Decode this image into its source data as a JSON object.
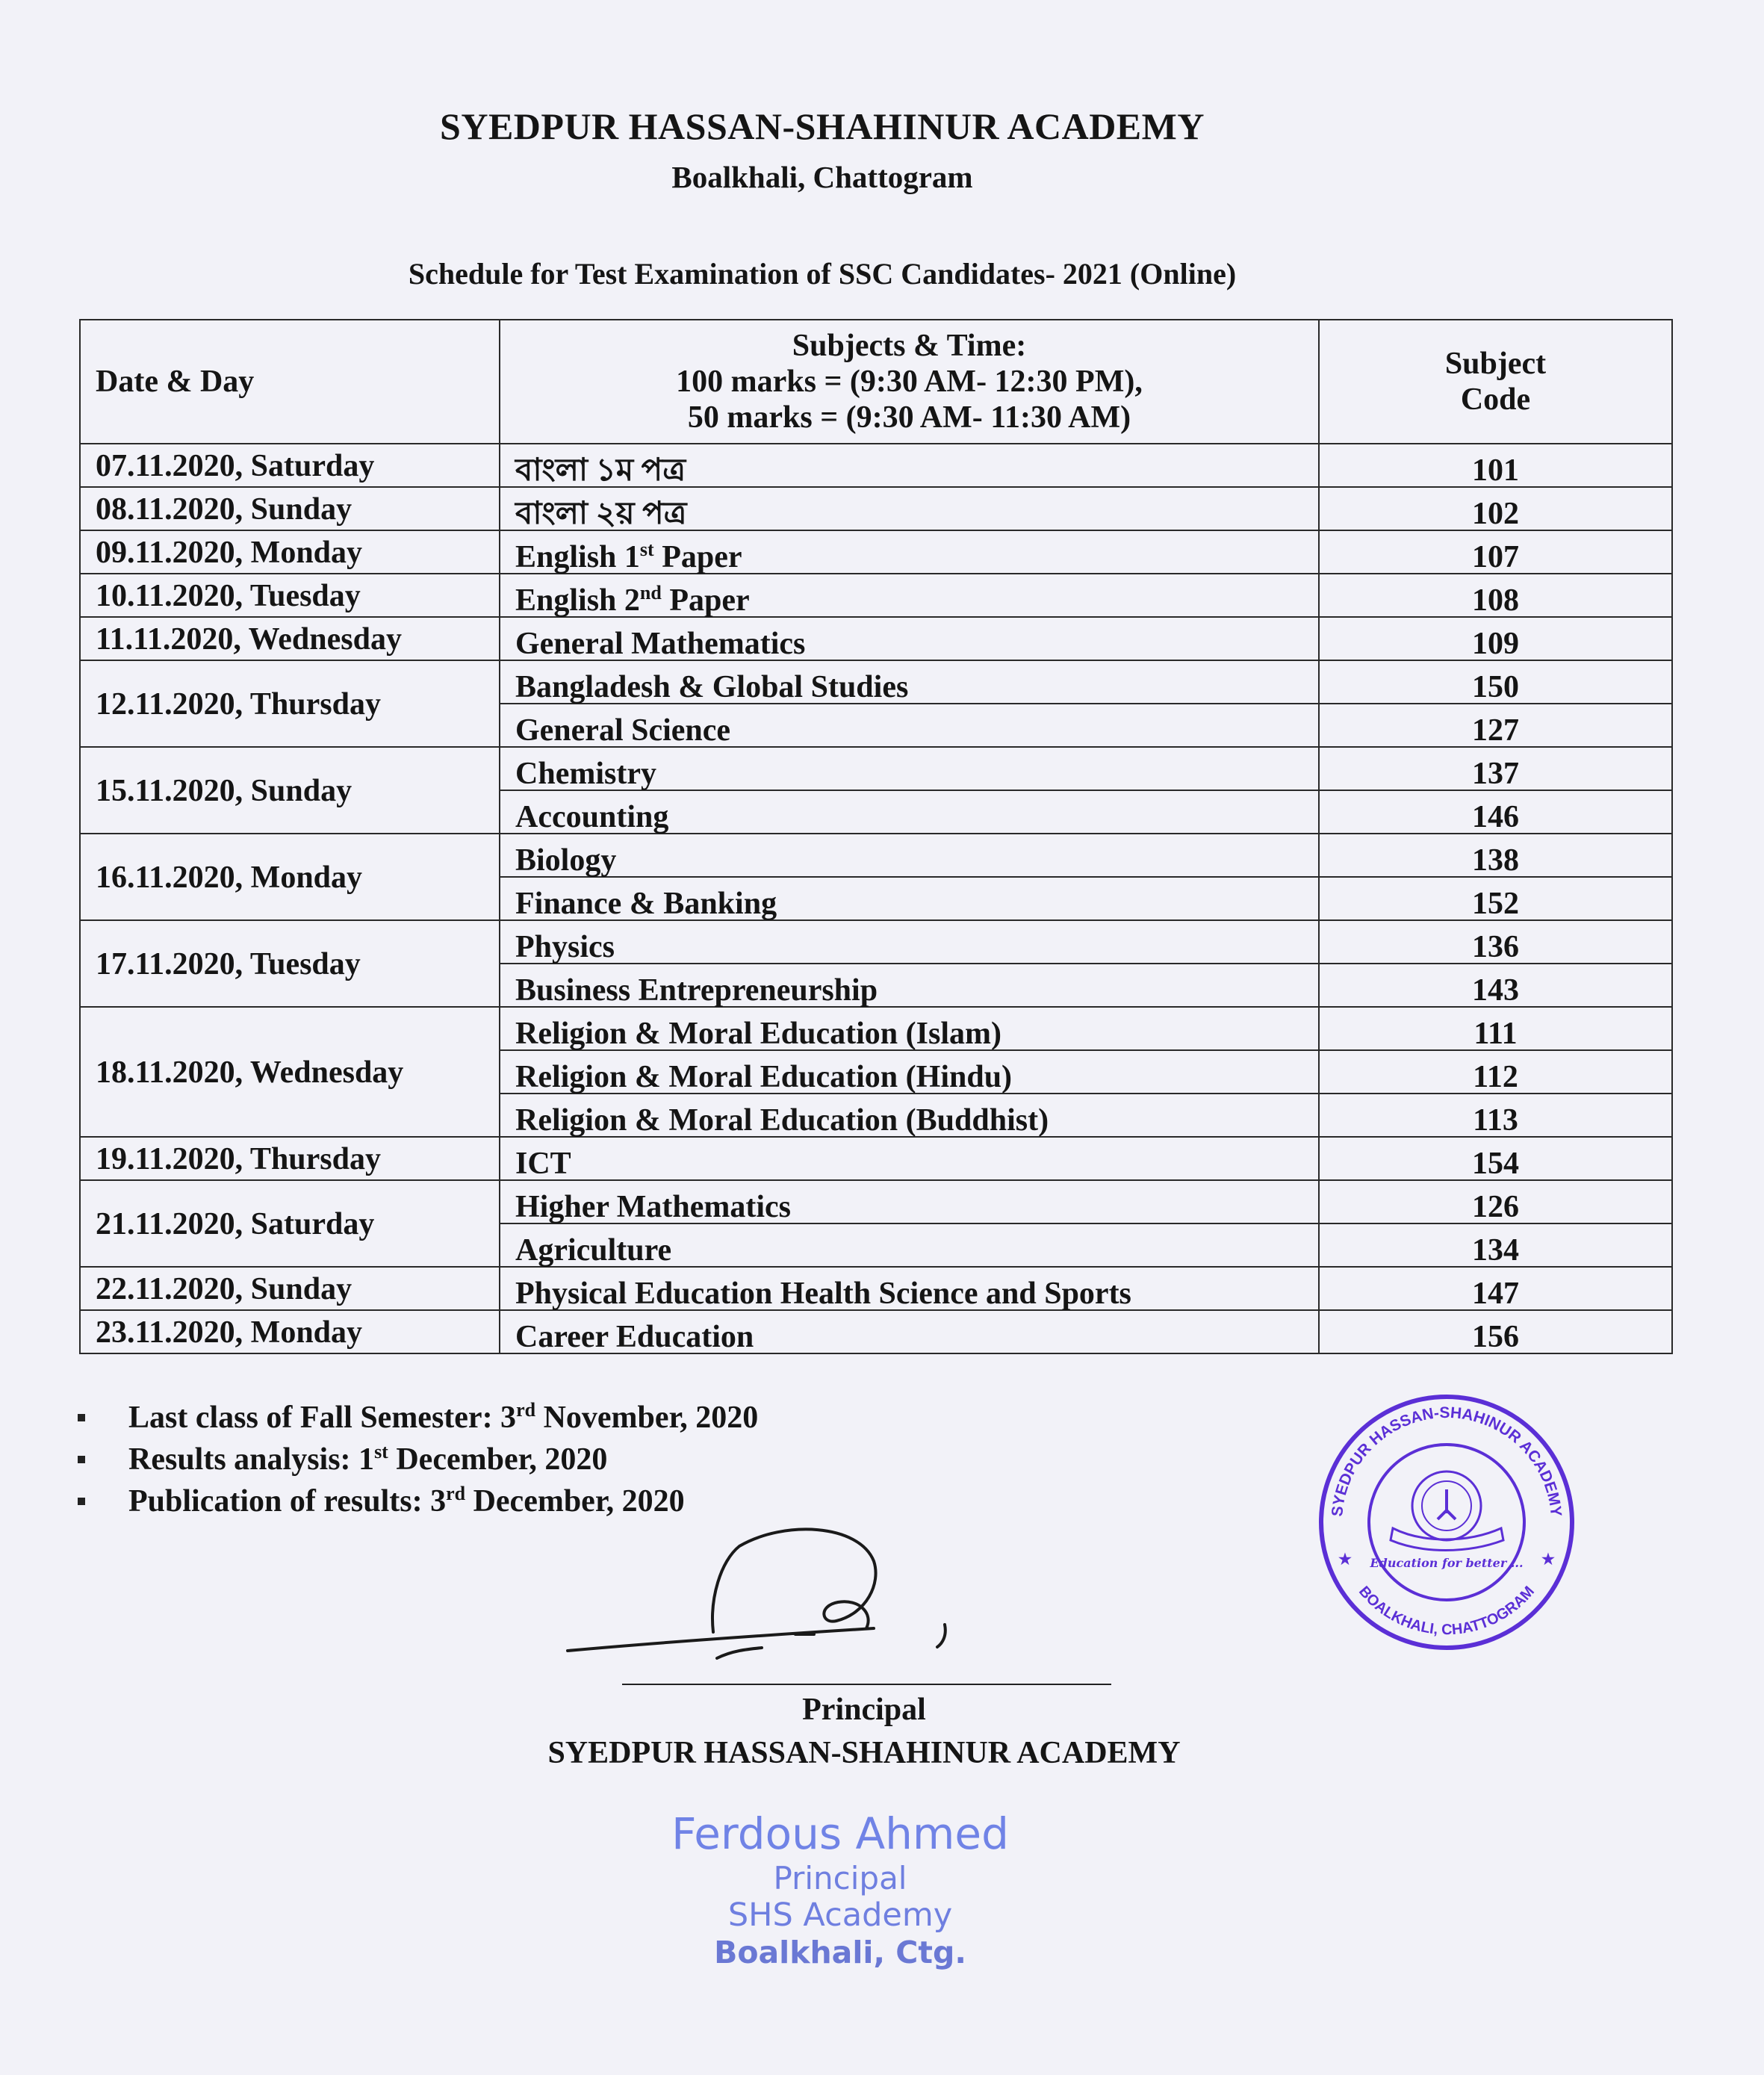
{
  "header": {
    "title": "SYEDPUR HASSAN-SHAHINUR ACADEMY",
    "subtitle": "Boalkhali, Chattogram",
    "heading": "Schedule for Test Examination of SSC Candidates- 2021 (Online)"
  },
  "table": {
    "col_date": "Date & Day",
    "col_subject_lines": [
      "Subjects & Time:",
      "100 marks = (9:30 AM- 12:30 PM),",
      "50 marks = (9:30 AM- 11:30 AM)"
    ],
    "col_code_lines": [
      "Subject",
      "Code"
    ],
    "groups": [
      {
        "date": "07.11.2020, Saturday",
        "subjects": [
          {
            "name": "বাংলা ১ম পত্র",
            "code": "101"
          }
        ]
      },
      {
        "date": "08.11.2020, Sunday",
        "subjects": [
          {
            "name": "বাংলা ২য় পত্র",
            "code": "102"
          }
        ]
      },
      {
        "date": "09.11.2020, Monday",
        "subjects": [
          {
            "name": "English 1",
            "sup": "st",
            "after": " Paper",
            "code": "107"
          }
        ]
      },
      {
        "date": "10.11.2020, Tuesday",
        "subjects": [
          {
            "name": "English 2",
            "sup": "nd",
            "after": " Paper",
            "code": "108"
          }
        ]
      },
      {
        "date": "11.11.2020, Wednesday",
        "subjects": [
          {
            "name": "General Mathematics",
            "code": "109"
          }
        ]
      },
      {
        "date": "12.11.2020, Thursday",
        "subjects": [
          {
            "name": "Bangladesh & Global Studies",
            "code": "150"
          },
          {
            "name": "General Science",
            "code": "127"
          }
        ]
      },
      {
        "date": "15.11.2020, Sunday",
        "subjects": [
          {
            "name": "Chemistry",
            "code": "137"
          },
          {
            "name": "Accounting",
            "code": "146"
          }
        ]
      },
      {
        "date": "16.11.2020, Monday",
        "subjects": [
          {
            "name": "Biology",
            "code": "138"
          },
          {
            "name": "Finance & Banking",
            "code": "152"
          }
        ]
      },
      {
        "date": "17.11.2020, Tuesday",
        "subjects": [
          {
            "name": "Physics",
            "code": "136"
          },
          {
            "name": "Business Entrepreneurship",
            "code": "143"
          }
        ]
      },
      {
        "date": "18.11.2020, Wednesday",
        "subjects": [
          {
            "name": "Religion & Moral Education (Islam)",
            "code": "111"
          },
          {
            "name": "Religion & Moral Education (Hindu)",
            "code": "112"
          },
          {
            "name": "Religion & Moral Education (Buddhist)",
            "code": "113"
          }
        ]
      },
      {
        "date": "19.11.2020, Thursday",
        "subjects": [
          {
            "name": "ICT",
            "code": "154"
          }
        ]
      },
      {
        "date": "21.11.2020, Saturday",
        "subjects": [
          {
            "name": "Higher Mathematics",
            "code": "126"
          },
          {
            "name": "Agriculture",
            "code": "134"
          }
        ]
      },
      {
        "date": "22.11.2020, Sunday",
        "subjects": [
          {
            "name": "Physical Education Health Science and Sports",
            "code": "147"
          }
        ]
      },
      {
        "date": "23.11.2020, Monday",
        "subjects": [
          {
            "name": "Career Education",
            "code": "156"
          }
        ]
      }
    ]
  },
  "notes": [
    {
      "before": "Last class of  Fall Semester: 3",
      "sup": "rd",
      "after": " November, 2020"
    },
    {
      "before": "Results  analysis: 1",
      "sup": "st",
      "after": " December, 2020"
    },
    {
      "before": "Publication of results:  3",
      "sup": "rd",
      "after": " December, 2020"
    }
  ],
  "signature": {
    "role": "Principal",
    "org": "SYEDPUR HASSAN-SHAHINUR ACADEMY"
  },
  "seal": {
    "outer_text": "SYEDPUR HASSAN-SHAHINUR ACADEMY",
    "bottom_text": "BOALKHALI, CHATTOGRAM",
    "inner_text": "Education for better ...",
    "color": "#5b2fd6"
  },
  "name_stamp": {
    "name": "Ferdous Ahmed",
    "role": "Principal",
    "org": "SHS Academy",
    "place": "Boalkhali, Ctg.",
    "color": "#6f7fe0"
  }
}
